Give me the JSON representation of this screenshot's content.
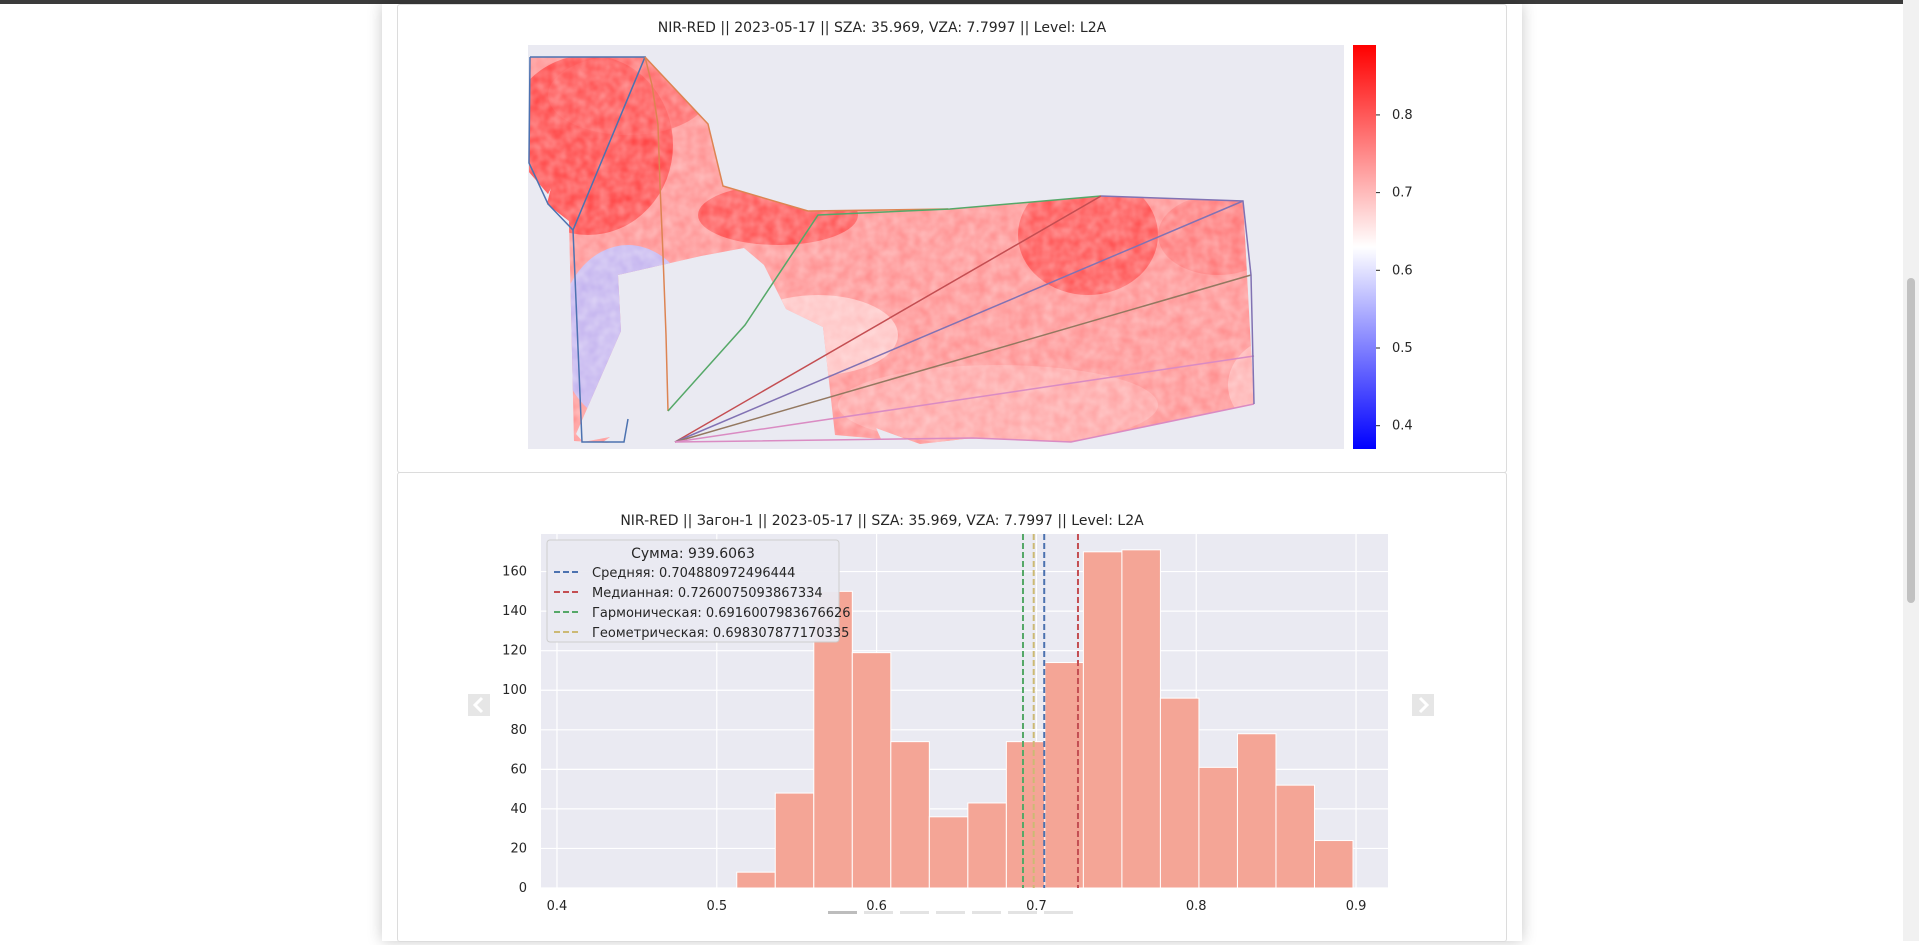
{
  "map_panel": {
    "title": "NIR-RED || 2023-05-17 || SZA: 35.969, VZA: 7.7997 || Level: L2A",
    "colorbar": {
      "ticks": [
        0.4,
        0.5,
        0.6,
        0.7,
        0.8
      ],
      "tick_labels": [
        "0.4",
        "0.5",
        "0.6",
        "0.7",
        "0.8"
      ],
      "range": [
        0.37,
        0.89
      ],
      "colors": [
        "#0000ff",
        "#ffffff",
        "#ff0000"
      ]
    }
  },
  "chart_data": {
    "type": "bar",
    "title": "NIR-RED || Загон-1 || 2023-05-17 || SZA: 35.969, VZA: 7.7997 || Level: L2A",
    "xlabel": "",
    "ylabel": "",
    "xlim": [
      0.39,
      0.92
    ],
    "ylim": [
      0,
      179
    ],
    "xticks": [
      0.4,
      0.5,
      0.6,
      0.7,
      0.8,
      0.9
    ],
    "xtick_labels": [
      "0.4",
      "0.5",
      "0.6",
      "0.7",
      "0.8",
      "0.9"
    ],
    "yticks": [
      0,
      20,
      40,
      60,
      80,
      100,
      120,
      140,
      160
    ],
    "ytick_labels": [
      "0",
      "20",
      "40",
      "60",
      "80",
      "100",
      "120",
      "140",
      "160"
    ],
    "grid": true,
    "bar_color": "#f4a596",
    "bin_edges": [
      0.5125,
      0.5366,
      0.5607,
      0.5848,
      0.6089,
      0.633,
      0.6571,
      0.6812,
      0.7053,
      0.7294,
      0.7535,
      0.7776,
      0.8017,
      0.8258,
      0.8499,
      0.874,
      0.8981
    ],
    "counts": [
      8,
      48,
      150,
      119,
      74,
      36,
      43,
      74,
      114,
      170,
      171,
      96,
      61,
      78,
      52,
      24
    ],
    "legend": {
      "position": "upper-left",
      "title": "Сумма: 939.6063",
      "entries": [
        {
          "label": "Средняя: 0.704880972496444",
          "value": 0.704880972496444,
          "color": "#4c72b0"
        },
        {
          "label": "Медианная: 0.7260075093867334",
          "value": 0.7260075093867334,
          "color": "#c44e52"
        },
        {
          "label": "Гармоническая: 0.6916007983676626",
          "value": 0.6916007983676626,
          "color": "#55a868"
        },
        {
          "label": "Геометрическая: 0.698307877170335",
          "value": 0.698307877170335,
          "color": "#ccb974"
        }
      ]
    }
  },
  "carousel": {
    "prev_icon": "chevron-left-icon",
    "next_icon": "chevron-right-icon",
    "slide_count": 7,
    "active_slide": 0
  }
}
